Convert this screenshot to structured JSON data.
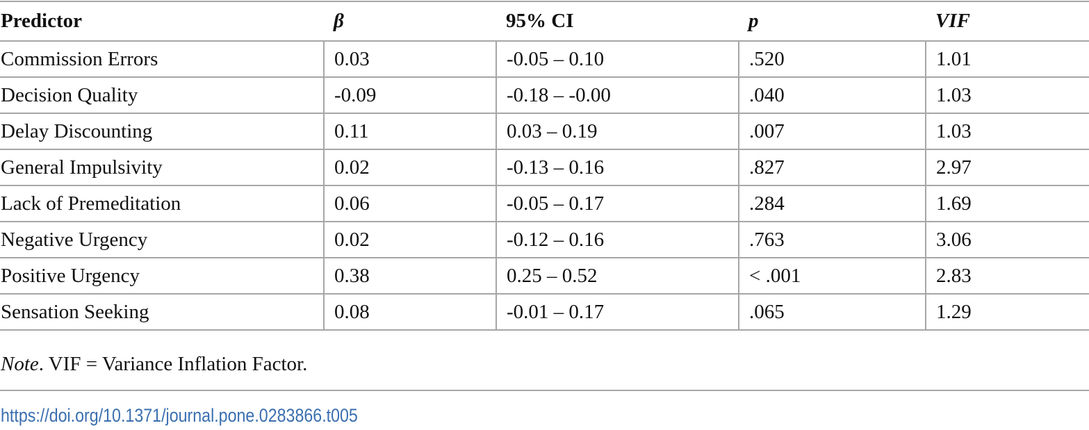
{
  "table": {
    "header": [
      "Predictor",
      "β",
      "95% CI",
      "p",
      "VIF"
    ],
    "rows": [
      [
        "Commission Errors",
        "0.03",
        "-0.05 – 0.10",
        ".520",
        "1.01"
      ],
      [
        "Decision Quality",
        "-0.09",
        "-0.18 – -0.00",
        ".040",
        "1.03"
      ],
      [
        "Delay Discounting",
        "0.11",
        "0.03 – 0.19",
        ".007",
        "1.03"
      ],
      [
        "General Impulsivity",
        "0.02",
        "-0.13 – 0.16",
        ".827",
        "2.97"
      ],
      [
        "Lack of Premeditation",
        "0.06",
        "-0.05 – 0.17",
        ".284",
        "1.69"
      ],
      [
        "Negative Urgency",
        "0.02",
        "-0.12 – 0.16",
        ".763",
        "3.06"
      ],
      [
        "Positive Urgency",
        "0.38",
        "0.25 – 0.52",
        "< .001",
        "2.83"
      ],
      [
        "Sensation Seeking",
        "0.08",
        "-0.01 – 0.17",
        ".065",
        "1.29"
      ]
    ]
  },
  "note": {
    "label": "Note",
    "text": ". VIF = Variance Inflation Factor."
  },
  "doi": "https://doi.org/10.1371/journal.pone.0283866.t005"
}
